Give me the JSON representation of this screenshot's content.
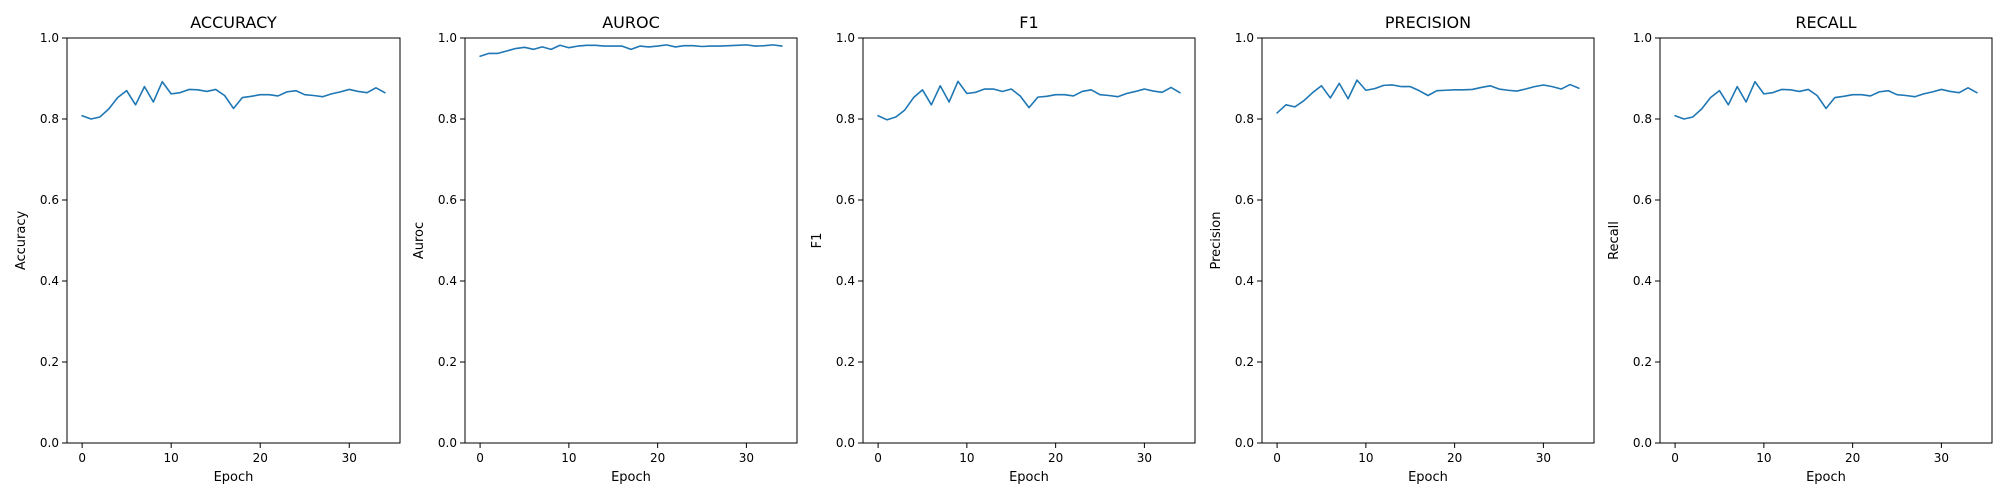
{
  "line_color": "#1f77b4",
  "chart_data": [
    {
      "type": "line",
      "title": "ACCURACY",
      "xlabel": "Epoch",
      "ylabel": "Accuracy",
      "xlim": [
        -1.7,
        35.7
      ],
      "ylim": [
        0.0,
        1.0
      ],
      "xticks": [
        0,
        10,
        20,
        30
      ],
      "yticks": [
        0.0,
        0.2,
        0.4,
        0.6,
        0.8,
        1.0
      ],
      "xtick_labels": [
        "0",
        "10",
        "20",
        "30"
      ],
      "ytick_labels": [
        "0.0",
        "0.2",
        "0.4",
        "0.6",
        "0.8",
        "1.0"
      ],
      "grid": false,
      "x": [
        0,
        1,
        2,
        3,
        4,
        5,
        6,
        7,
        8,
        9,
        10,
        11,
        12,
        13,
        14,
        15,
        16,
        17,
        18,
        19,
        20,
        21,
        22,
        23,
        24,
        25,
        26,
        27,
        28,
        29,
        30,
        31,
        32,
        33,
        34
      ],
      "series": [
        {
          "values": [
            0.808,
            0.8,
            0.805,
            0.825,
            0.853,
            0.87,
            0.835,
            0.88,
            0.842,
            0.892,
            0.862,
            0.865,
            0.873,
            0.872,
            0.868,
            0.873,
            0.858,
            0.826,
            0.853,
            0.856,
            0.86,
            0.86,
            0.857,
            0.867,
            0.87,
            0.86,
            0.858,
            0.855,
            0.862,
            0.867,
            0.873,
            0.868,
            0.865,
            0.877,
            0.865
          ]
        }
      ]
    },
    {
      "type": "line",
      "title": "AUROC",
      "xlabel": "Epoch",
      "ylabel": "Auroc",
      "xlim": [
        -1.7,
        35.7
      ],
      "ylim": [
        0.0,
        1.0
      ],
      "xticks": [
        0,
        10,
        20,
        30
      ],
      "yticks": [
        0.0,
        0.2,
        0.4,
        0.6,
        0.8,
        1.0
      ],
      "xtick_labels": [
        "0",
        "10",
        "20",
        "30"
      ],
      "ytick_labels": [
        "0.0",
        "0.2",
        "0.4",
        "0.6",
        "0.8",
        "1.0"
      ],
      "grid": false,
      "x": [
        0,
        1,
        2,
        3,
        4,
        5,
        6,
        7,
        8,
        9,
        10,
        11,
        12,
        13,
        14,
        15,
        16,
        17,
        18,
        19,
        20,
        21,
        22,
        23,
        24,
        25,
        26,
        27,
        28,
        29,
        30,
        31,
        32,
        33,
        34
      ],
      "series": [
        {
          "values": [
            0.955,
            0.962,
            0.962,
            0.968,
            0.974,
            0.977,
            0.972,
            0.978,
            0.972,
            0.982,
            0.976,
            0.98,
            0.982,
            0.982,
            0.98,
            0.98,
            0.98,
            0.972,
            0.98,
            0.978,
            0.98,
            0.983,
            0.978,
            0.981,
            0.981,
            0.979,
            0.98,
            0.98,
            0.981,
            0.982,
            0.983,
            0.98,
            0.981,
            0.983,
            0.98
          ]
        }
      ]
    },
    {
      "type": "line",
      "title": "F1",
      "xlabel": "Epoch",
      "ylabel": "F1",
      "xlim": [
        -1.7,
        35.7
      ],
      "ylim": [
        0.0,
        1.0
      ],
      "xticks": [
        0,
        10,
        20,
        30
      ],
      "yticks": [
        0.0,
        0.2,
        0.4,
        0.6,
        0.8,
        1.0
      ],
      "xtick_labels": [
        "0",
        "10",
        "20",
        "30"
      ],
      "ytick_labels": [
        "0.0",
        "0.2",
        "0.4",
        "0.6",
        "0.8",
        "1.0"
      ],
      "grid": false,
      "x": [
        0,
        1,
        2,
        3,
        4,
        5,
        6,
        7,
        8,
        9,
        10,
        11,
        12,
        13,
        14,
        15,
        16,
        17,
        18,
        19,
        20,
        21,
        22,
        23,
        24,
        25,
        26,
        27,
        28,
        29,
        30,
        31,
        32,
        33,
        34
      ],
      "series": [
        {
          "values": [
            0.808,
            0.798,
            0.805,
            0.822,
            0.853,
            0.872,
            0.835,
            0.882,
            0.842,
            0.893,
            0.863,
            0.866,
            0.874,
            0.874,
            0.868,
            0.874,
            0.857,
            0.828,
            0.854,
            0.856,
            0.86,
            0.86,
            0.857,
            0.868,
            0.872,
            0.86,
            0.858,
            0.855,
            0.863,
            0.868,
            0.874,
            0.869,
            0.866,
            0.878,
            0.865
          ]
        }
      ]
    },
    {
      "type": "line",
      "title": "PRECISION",
      "xlabel": "Epoch",
      "ylabel": "Precision",
      "xlim": [
        -1.7,
        35.7
      ],
      "ylim": [
        0.0,
        1.0
      ],
      "xticks": [
        0,
        10,
        20,
        30
      ],
      "yticks": [
        0.0,
        0.2,
        0.4,
        0.6,
        0.8,
        1.0
      ],
      "xtick_labels": [
        "0",
        "10",
        "20",
        "30"
      ],
      "ytick_labels": [
        "0.0",
        "0.2",
        "0.4",
        "0.6",
        "0.8",
        "1.0"
      ],
      "grid": false,
      "x": [
        0,
        1,
        2,
        3,
        4,
        5,
        6,
        7,
        8,
        9,
        10,
        11,
        12,
        13,
        14,
        15,
        16,
        17,
        18,
        19,
        20,
        21,
        22,
        23,
        24,
        25,
        26,
        27,
        28,
        29,
        30,
        31,
        32,
        33,
        34
      ],
      "series": [
        {
          "values": [
            0.815,
            0.835,
            0.83,
            0.845,
            0.865,
            0.882,
            0.852,
            0.888,
            0.85,
            0.896,
            0.871,
            0.875,
            0.883,
            0.884,
            0.88,
            0.88,
            0.87,
            0.858,
            0.87,
            0.871,
            0.872,
            0.872,
            0.873,
            0.878,
            0.882,
            0.874,
            0.871,
            0.869,
            0.874,
            0.88,
            0.884,
            0.88,
            0.874,
            0.885,
            0.876
          ]
        }
      ]
    },
    {
      "type": "line",
      "title": "RECALL",
      "xlabel": "Epoch",
      "ylabel": "Recall",
      "xlim": [
        -1.7,
        35.7
      ],
      "ylim": [
        0.0,
        1.0
      ],
      "xticks": [
        0,
        10,
        20,
        30
      ],
      "yticks": [
        0.0,
        0.2,
        0.4,
        0.6,
        0.8,
        1.0
      ],
      "xtick_labels": [
        "0",
        "10",
        "20",
        "30"
      ],
      "ytick_labels": [
        "0.0",
        "0.2",
        "0.4",
        "0.6",
        "0.8",
        "1.0"
      ],
      "grid": false,
      "x": [
        0,
        1,
        2,
        3,
        4,
        5,
        6,
        7,
        8,
        9,
        10,
        11,
        12,
        13,
        14,
        15,
        16,
        17,
        18,
        19,
        20,
        21,
        22,
        23,
        24,
        25,
        26,
        27,
        28,
        29,
        30,
        31,
        32,
        33,
        34
      ],
      "series": [
        {
          "values": [
            0.808,
            0.8,
            0.805,
            0.825,
            0.853,
            0.87,
            0.835,
            0.88,
            0.842,
            0.892,
            0.862,
            0.865,
            0.873,
            0.872,
            0.868,
            0.873,
            0.858,
            0.826,
            0.853,
            0.856,
            0.86,
            0.86,
            0.857,
            0.867,
            0.87,
            0.86,
            0.858,
            0.855,
            0.862,
            0.867,
            0.873,
            0.868,
            0.865,
            0.877,
            0.865
          ]
        }
      ]
    }
  ]
}
